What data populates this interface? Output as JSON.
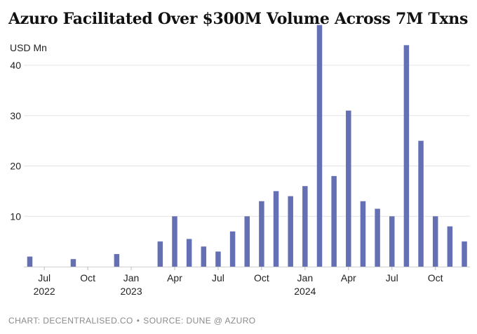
{
  "title": "Azuro Facilitated Over $300M Volume Across 7M Txns",
  "footer": {
    "chart_credit": "CHART: DECENTRALISED.CO",
    "separator": "•",
    "source": "SOURCE: DUNE @ AZURO"
  },
  "chart_data": {
    "type": "bar",
    "title": "Azuro Facilitated Over $300M Volume Across 7M Txns",
    "ylabel": "USD Mn",
    "xlabel": "",
    "ylim": [
      0,
      46
    ],
    "yticks": [
      10,
      20,
      30,
      40
    ],
    "grid": true,
    "legend": "none",
    "bar_color": "#6570b4",
    "categories": [
      "2022-06",
      "2022-07",
      "2022-08",
      "2022-09",
      "2022-10",
      "2022-11",
      "2022-12",
      "2023-01",
      "2023-02",
      "2023-03",
      "2023-04",
      "2023-05",
      "2023-06",
      "2023-07",
      "2023-08",
      "2023-09",
      "2023-10",
      "2023-11",
      "2023-12",
      "2024-01",
      "2024-02",
      "2024-03",
      "2024-04",
      "2024-05",
      "2024-06",
      "2024-07",
      "2024-08",
      "2024-09",
      "2024-10",
      "2024-11",
      "2024-12"
    ],
    "values": [
      2,
      0,
      0,
      1.5,
      0,
      0,
      2.5,
      0,
      0,
      5,
      10,
      5.5,
      4,
      3,
      7,
      10,
      13,
      15,
      14,
      16,
      48,
      18,
      31,
      13,
      11.5,
      10,
      44,
      25,
      10,
      8,
      5
    ],
    "x_tick_labels": [
      {
        "category": "2022-07",
        "month": "Jul",
        "year": "2022"
      },
      {
        "category": "2022-10",
        "month": "Oct",
        "year": ""
      },
      {
        "category": "2023-01",
        "month": "Jan",
        "year": "2023"
      },
      {
        "category": "2023-04",
        "month": "Apr",
        "year": ""
      },
      {
        "category": "2023-07",
        "month": "Jul",
        "year": ""
      },
      {
        "category": "2023-10",
        "month": "Oct",
        "year": ""
      },
      {
        "category": "2024-01",
        "month": "Jan",
        "year": "2024"
      },
      {
        "category": "2024-04",
        "month": "Apr",
        "year": ""
      },
      {
        "category": "2024-07",
        "month": "Jul",
        "year": ""
      },
      {
        "category": "2024-10",
        "month": "Oct",
        "year": ""
      }
    ]
  }
}
